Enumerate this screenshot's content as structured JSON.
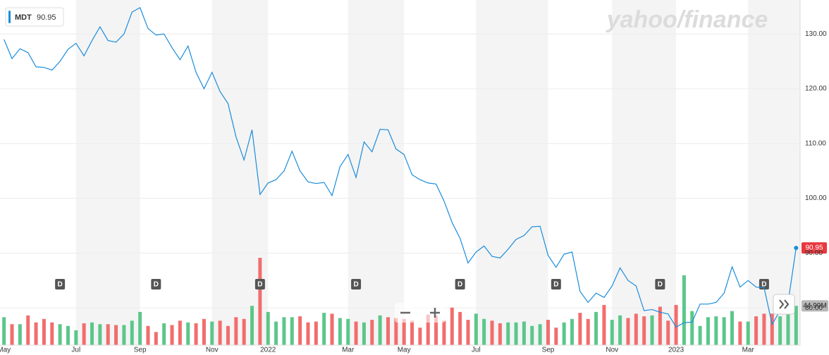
{
  "chart_data": {
    "type": "line",
    "watermark": "yahoo/finance",
    "categories": [
      "May",
      null,
      null,
      null,
      null,
      null,
      null,
      null,
      null,
      "Jul",
      null,
      null,
      null,
      null,
      null,
      null,
      null,
      "Sep",
      null,
      null,
      null,
      null,
      null,
      null,
      null,
      null,
      "Nov",
      null,
      null,
      null,
      null,
      null,
      null,
      "2022",
      null,
      null,
      null,
      null,
      null,
      null,
      null,
      null,
      null,
      "Mar",
      null,
      null,
      null,
      null,
      null,
      null,
      "May",
      null,
      null,
      null,
      null,
      null,
      null,
      null,
      null,
      "Jul",
      null,
      null,
      null,
      null,
      null,
      null,
      null,
      null,
      "Sep",
      null,
      null,
      null,
      null,
      null,
      null,
      null,
      "Nov",
      null,
      null,
      null,
      null,
      null,
      null,
      null,
      "2023",
      null,
      null,
      null,
      null,
      null,
      null,
      null,
      null,
      "Mar",
      null,
      null,
      null,
      null,
      null,
      null
    ],
    "series": [
      {
        "name": "MDT",
        "color": "#1a8cdb",
        "values": [
          129,
          125.5,
          127.3,
          126.6,
          124,
          123.9,
          123.4,
          125,
          127.2,
          128.3,
          126,
          128.8,
          131.3,
          128.8,
          128.5,
          130,
          134,
          134.8,
          131,
          129.8,
          130,
          127.5,
          125.3,
          127.8,
          123,
          120,
          123,
          119.5,
          117.3,
          111.2,
          107,
          112.5,
          100.7,
          102.8,
          103.4,
          105,
          108.6,
          105,
          103,
          102.7,
          102.9,
          100.5,
          105.8,
          108,
          103.8,
          110.3,
          108.5,
          112.6,
          112.5,
          109,
          108,
          104.3,
          103.4,
          102.8,
          102.6,
          99.5,
          95.6,
          92.7,
          88.2,
          90.2,
          91.3,
          89.4,
          89.1,
          90.7,
          92.5,
          93.2,
          94.8,
          94.9,
          89.6,
          87.4,
          89.8,
          90.2,
          83,
          81,
          82.7,
          81.9,
          84,
          87.3,
          85,
          84,
          79.5,
          79.7,
          79.2,
          78.9,
          76.5,
          77.3,
          77.4,
          80.7,
          80.7,
          81,
          82.7,
          87.5,
          83.8,
          85,
          83.8,
          83.7,
          77,
          79.5,
          81,
          90.95
        ]
      }
    ],
    "volume": {
      "up_color": "#5bc78a",
      "down_color": "#f26d6d",
      "last_value_label": "44.99M",
      "values": [
        32,
        24,
        24,
        34,
        26,
        30,
        26,
        24,
        22,
        17,
        25,
        26,
        24,
        24,
        23,
        23,
        28,
        38,
        22,
        15,
        25,
        23,
        28,
        26,
        25,
        30,
        27,
        28,
        22,
        32,
        30,
        45,
        100,
        38,
        27,
        32,
        32,
        33,
        26,
        27,
        37,
        36,
        31,
        30,
        27,
        26,
        29,
        34,
        32,
        31,
        30,
        28,
        20,
        35,
        34,
        28,
        43,
        38,
        29,
        36,
        30,
        28,
        25,
        26,
        26,
        27,
        22,
        24,
        29,
        20,
        26,
        30,
        37,
        30,
        38,
        46,
        29,
        34,
        31,
        36,
        33,
        34,
        44,
        28,
        46,
        80,
        39,
        22,
        32,
        33,
        32,
        39,
        27,
        27,
        33,
        36,
        36,
        33,
        36,
        44.99
      ]
    },
    "dividends": [
      null,
      null,
      null,
      null,
      null,
      null,
      null,
      "D",
      null,
      null,
      null,
      null,
      null,
      null,
      null,
      null,
      null,
      null,
      null,
      "D",
      null,
      null,
      null,
      null,
      null,
      null,
      null,
      null,
      null,
      null,
      null,
      null,
      "D",
      null,
      null,
      null,
      null,
      null,
      null,
      null,
      null,
      null,
      null,
      null,
      "D",
      null,
      null,
      null,
      null,
      null,
      null,
      null,
      null,
      null,
      null,
      null,
      null,
      "D",
      null,
      null,
      null,
      null,
      null,
      null,
      null,
      null,
      null,
      null,
      null,
      "D",
      null,
      null,
      null,
      null,
      null,
      null,
      null,
      null,
      null,
      null,
      null,
      null,
      "D",
      null,
      null,
      null,
      null,
      null,
      null,
      null,
      null,
      null,
      null,
      null,
      null,
      "D",
      null,
      null,
      null,
      null
    ],
    "ylim": [
      73.2,
      136.2
    ],
    "yticks": [
      {
        "value": 80,
        "label": "80.00"
      },
      {
        "value": 90,
        "label": "90.00"
      },
      {
        "value": 100,
        "label": "100.00"
      },
      {
        "value": 110,
        "label": "110.00"
      },
      {
        "value": 120,
        "label": "120.00"
      },
      {
        "value": 130,
        "label": "130.00"
      }
    ],
    "grid": true
  }
}
